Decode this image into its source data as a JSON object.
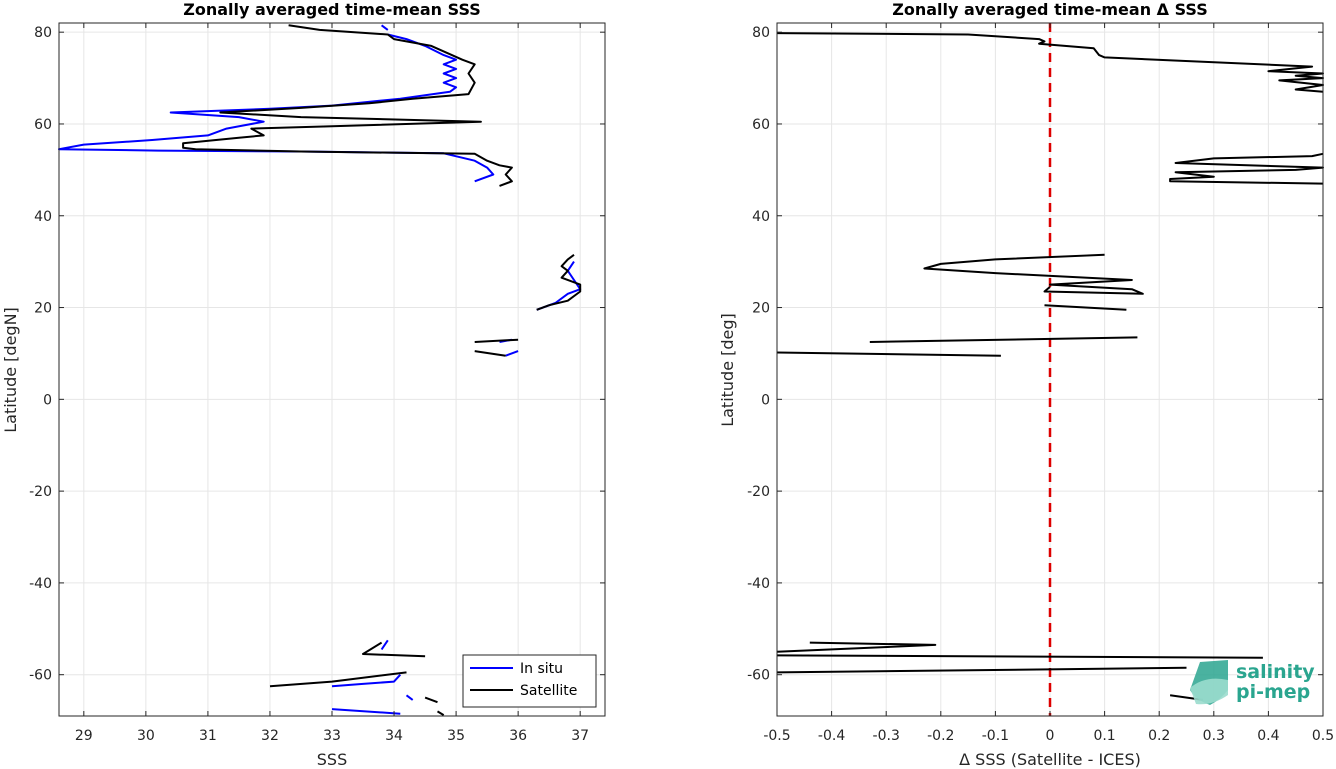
{
  "chart_data": [
    {
      "type": "line",
      "title": "Zonally averaged time-mean SSS",
      "xlabel": "SSS",
      "ylabel": "Latitude [degN]",
      "xlim": [
        28.6,
        37.4
      ],
      "ylim": [
        -69,
        82
      ],
      "xticks": [
        29,
        30,
        31,
        32,
        33,
        34,
        35,
        36,
        37
      ],
      "yticks": [
        -60,
        -40,
        -20,
        0,
        20,
        40,
        60,
        80
      ],
      "grid": true,
      "legend": "bottom-right",
      "series": [
        {
          "name": "In situ",
          "color": "#0000ff",
          "segments": [
            [
              [
                33.8,
                81.5
              ],
              [
                33.9,
                80.5
              ]
            ],
            [
              [
                33.9,
                79.5
              ],
              [
                34.2,
                78.5
              ],
              [
                34.5,
                77
              ],
              [
                34.8,
                75
              ],
              [
                35.0,
                74
              ],
              [
                34.8,
                73
              ],
              [
                35.0,
                72
              ],
              [
                34.8,
                71
              ],
              [
                35.0,
                70
              ],
              [
                34.8,
                69
              ],
              [
                35.0,
                68
              ],
              [
                34.9,
                67
              ],
              [
                34.1,
                65.5
              ],
              [
                33.0,
                64
              ],
              [
                32.0,
                63.3
              ],
              [
                30.4,
                62.5
              ],
              [
                31.5,
                61.5
              ],
              [
                31.9,
                60.5
              ],
              [
                31.3,
                59
              ],
              [
                31.0,
                57.5
              ],
              [
                30.1,
                56.5
              ],
              [
                29.0,
                55.5
              ],
              [
                28.6,
                54.5
              ],
              [
                30.2,
                54.2
              ],
              [
                32.5,
                54
              ],
              [
                34.8,
                53.6
              ],
              [
                35.3,
                52
              ],
              [
                35.5,
                50.5
              ],
              [
                35.6,
                49
              ],
              [
                35.3,
                47.5
              ]
            ],
            [
              [
                36.3,
                19.5
              ],
              [
                36.6,
                21
              ],
              [
                36.8,
                23
              ],
              [
                37.0,
                24
              ],
              [
                36.9,
                26
              ],
              [
                36.8,
                28
              ],
              [
                36.9,
                30
              ]
            ],
            [
              [
                35.7,
                12.5
              ],
              [
                35.9,
                13
              ]
            ],
            [
              [
                35.8,
                9.5
              ],
              [
                36.0,
                10.5
              ]
            ],
            [
              [
                33.9,
                -52.5
              ],
              [
                33.8,
                -54.5
              ]
            ],
            [
              [
                34.1,
                -60
              ],
              [
                34.0,
                -61.5
              ],
              [
                33.5,
                -62
              ],
              [
                33.0,
                -62.5
              ]
            ],
            [
              [
                34.2,
                -64.5
              ],
              [
                34.3,
                -65.5
              ]
            ],
            [
              [
                33.0,
                -67.5
              ],
              [
                34.1,
                -68.5
              ]
            ]
          ]
        },
        {
          "name": "Satellite",
          "color": "#000000",
          "segments": [
            [
              [
                32.3,
                81.5
              ],
              [
                32.8,
                80.5
              ],
              [
                33.9,
                79.5
              ],
              [
                34.0,
                78.5
              ],
              [
                34.6,
                77
              ],
              [
                35.1,
                74
              ],
              [
                35.3,
                73
              ],
              [
                35.2,
                71
              ],
              [
                35.3,
                69
              ],
              [
                35.2,
                66.5
              ],
              [
                34.3,
                65.5
              ],
              [
                33.6,
                64.5
              ],
              [
                32.5,
                63.5
              ],
              [
                31.2,
                62.5
              ],
              [
                32.5,
                61.5
              ],
              [
                35.4,
                60.5
              ],
              [
                33.0,
                59.5
              ],
              [
                31.7,
                59
              ],
              [
                31.9,
                57.5
              ],
              [
                31.5,
                57
              ],
              [
                30.6,
                55.8
              ],
              [
                30.6,
                54.8
              ],
              [
                30.8,
                54.5
              ],
              [
                32.5,
                54
              ],
              [
                35.3,
                53.5
              ],
              [
                35.5,
                52
              ],
              [
                35.7,
                51
              ],
              [
                35.9,
                50.5
              ],
              [
                35.8,
                49
              ],
              [
                35.9,
                47.5
              ],
              [
                35.7,
                46.5
              ]
            ],
            [
              [
                36.3,
                19.5
              ],
              [
                36.5,
                20.5
              ],
              [
                36.8,
                21.5
              ],
              [
                37.0,
                23.5
              ],
              [
                37.0,
                25
              ],
              [
                36.7,
                26.5
              ],
              [
                36.8,
                28
              ],
              [
                36.7,
                29
              ],
              [
                36.8,
                30.5
              ],
              [
                36.9,
                31.5
              ]
            ],
            [
              [
                35.3,
                12.5
              ],
              [
                36.0,
                13
              ]
            ],
            [
              [
                35.3,
                10.5
              ],
              [
                35.8,
                9.5
              ]
            ],
            [
              [
                33.8,
                -53
              ],
              [
                33.5,
                -55.5
              ],
              [
                34.5,
                -56
              ]
            ],
            [
              [
                34.2,
                -59.5
              ],
              [
                33.0,
                -61.5
              ],
              [
                32.0,
                -62.5
              ]
            ],
            [
              [
                34.5,
                -65
              ],
              [
                34.7,
                -66
              ]
            ],
            [
              [
                34.7,
                -68
              ],
              [
                34.8,
                -68.8
              ]
            ]
          ]
        }
      ]
    },
    {
      "type": "line",
      "title": "Zonally averaged time-mean Δ SSS",
      "xlabel": "Δ SSS (Satellite - ICES)",
      "ylabel": "Latitude [deg]",
      "xlim": [
        -0.5,
        0.5
      ],
      "ylim": [
        -69,
        82
      ],
      "xticks": [
        -0.5,
        -0.4,
        -0.3,
        -0.2,
        -0.1,
        0,
        0.1,
        0.2,
        0.3,
        0.4,
        0.5
      ],
      "yticks": [
        -60,
        -40,
        -20,
        0,
        20,
        40,
        60,
        80
      ],
      "grid": true,
      "reference_line": {
        "x": 0,
        "color": "#dd0000",
        "style": "dashed"
      },
      "series": [
        {
          "color": "#000000",
          "segments": [
            [
              [
                -0.5,
                79.8
              ],
              [
                -0.15,
                79.5
              ],
              [
                -0.02,
                78.5
              ],
              [
                -0.01,
                78
              ],
              [
                -0.02,
                77.5
              ],
              [
                0.08,
                76.5
              ],
              [
                0.09,
                75
              ],
              [
                0.1,
                74.5
              ],
              [
                0.48,
                72.5
              ],
              [
                0.4,
                71.5
              ],
              [
                0.5,
                71
              ],
              [
                0.45,
                70.5
              ],
              [
                0.5,
                70
              ],
              [
                0.42,
                69.5
              ],
              [
                0.5,
                68.5
              ],
              [
                0.45,
                67.5
              ],
              [
                0.5,
                67
              ]
            ],
            [
              [
                0.5,
                53.5
              ],
              [
                0.48,
                53
              ],
              [
                0.3,
                52.5
              ],
              [
                0.23,
                51.5
              ],
              [
                0.5,
                50.5
              ],
              [
                0.45,
                50
              ],
              [
                0.23,
                49.5
              ],
              [
                0.3,
                48.5
              ],
              [
                0.22,
                48
              ],
              [
                0.22,
                47.5
              ],
              [
                0.5,
                47
              ]
            ],
            [
              [
                0.1,
                31.5
              ],
              [
                -0.1,
                30.5
              ],
              [
                -0.2,
                29.5
              ],
              [
                -0.23,
                28.5
              ],
              [
                -0.1,
                27.5
              ],
              [
                0.15,
                26
              ],
              [
                0.0,
                25
              ],
              [
                0.15,
                24
              ],
              [
                0.17,
                23
              ],
              [
                -0.01,
                23.5
              ],
              [
                0.0,
                24.5
              ]
            ],
            [
              [
                -0.01,
                20.5
              ],
              [
                0.14,
                19.5
              ]
            ],
            [
              [
                -0.33,
                12.5
              ],
              [
                0.16,
                13.5
              ]
            ],
            [
              [
                -0.5,
                10.2
              ],
              [
                -0.09,
                9.5
              ]
            ],
            [
              [
                -0.44,
                -53
              ],
              [
                -0.21,
                -53.5
              ],
              [
                -0.5,
                -55
              ]
            ],
            [
              [
                -0.5,
                -55.8
              ],
              [
                0.39,
                -56.3
              ]
            ],
            [
              [
                -0.5,
                -59.5
              ],
              [
                0.25,
                -58.5
              ]
            ],
            [
              [
                0.22,
                -64.5
              ],
              [
                0.28,
                -65.5
              ]
            ]
          ]
        }
      ]
    }
  ],
  "logo": {
    "line1": "salinity",
    "line2": "pi-mep"
  }
}
